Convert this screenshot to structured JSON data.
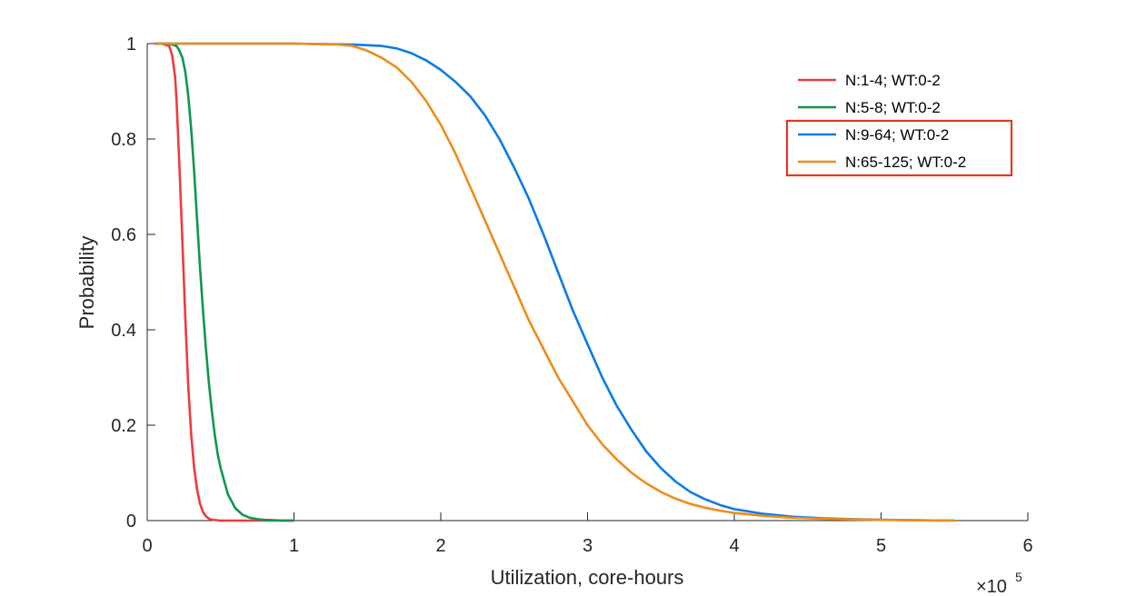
{
  "chart_data": {
    "type": "line",
    "xlabel": "Utilization, core-hours",
    "ylabel": "Probability",
    "x_exponent": "×10",
    "x_exponent_power": "5",
    "xlim": [
      0,
      600000
    ],
    "ylim": [
      0,
      1
    ],
    "xticks": [
      0,
      100000,
      200000,
      300000,
      400000,
      500000,
      600000
    ],
    "xtick_labels": [
      "0",
      "1",
      "2",
      "3",
      "4",
      "5",
      "6"
    ],
    "yticks": [
      0,
      0.2,
      0.4,
      0.6,
      0.8,
      1
    ],
    "ytick_labels": [
      "0",
      "0.2",
      "0.4",
      "0.6",
      "0.8",
      "1"
    ],
    "grid": false,
    "legend_position": "top-right",
    "highlight_box_color": "#E8361F",
    "highlighted_series": [
      2,
      3
    ],
    "series": [
      {
        "name": "N:1-4; WT:0-2",
        "color": "#EF3A3F",
        "x": [
          5000,
          10000,
          15000,
          17000,
          19000,
          20000,
          22000,
          24000,
          26000,
          28000,
          30000,
          32000,
          34000,
          36000,
          38000,
          40000,
          42000,
          44000,
          47000,
          50000,
          55000,
          60000,
          100000
        ],
        "y": [
          1,
          1,
          0.995,
          0.975,
          0.93,
          0.88,
          0.74,
          0.58,
          0.42,
          0.28,
          0.18,
          0.11,
          0.065,
          0.035,
          0.018,
          0.009,
          0.004,
          0.002,
          0.001,
          0,
          0,
          0,
          0
        ]
      },
      {
        "name": "N:5-8; WT:0-2",
        "color": "#0F9650",
        "x": [
          5000,
          15000,
          20000,
          22000,
          24000,
          26000,
          28000,
          30000,
          32000,
          34000,
          36000,
          38000,
          40000,
          42000,
          44000,
          46000,
          48000,
          50000,
          55000,
          60000,
          65000,
          70000,
          75000,
          80000,
          90000,
          100000
        ],
        "y": [
          1,
          1,
          0.995,
          0.985,
          0.97,
          0.94,
          0.89,
          0.82,
          0.73,
          0.63,
          0.53,
          0.44,
          0.36,
          0.29,
          0.23,
          0.18,
          0.14,
          0.11,
          0.055,
          0.026,
          0.012,
          0.006,
          0.003,
          0.0015,
          0.0004,
          0
        ]
      },
      {
        "name": "N:9-64; WT:0-2",
        "color": "#0A7BE8",
        "x": [
          5000,
          50000,
          100000,
          140000,
          160000,
          170000,
          180000,
          190000,
          200000,
          210000,
          220000,
          230000,
          240000,
          250000,
          260000,
          270000,
          280000,
          290000,
          300000,
          310000,
          320000,
          330000,
          340000,
          350000,
          360000,
          370000,
          380000,
          390000,
          400000,
          420000,
          440000,
          460000,
          480000,
          500000,
          520000,
          550000
        ],
        "y": [
          1,
          1,
          1,
          0.998,
          0.995,
          0.99,
          0.98,
          0.965,
          0.945,
          0.92,
          0.89,
          0.85,
          0.8,
          0.74,
          0.675,
          0.6,
          0.52,
          0.44,
          0.37,
          0.3,
          0.24,
          0.19,
          0.145,
          0.11,
          0.082,
          0.06,
          0.045,
          0.033,
          0.024,
          0.014,
          0.008,
          0.005,
          0.003,
          0.002,
          0.001,
          0
        ]
      },
      {
        "name": "N:65-125; WT:0-2",
        "color": "#EF8C1A",
        "x": [
          5000,
          50000,
          100000,
          130000,
          140000,
          150000,
          160000,
          170000,
          180000,
          190000,
          200000,
          210000,
          220000,
          230000,
          240000,
          250000,
          260000,
          270000,
          280000,
          290000,
          300000,
          310000,
          320000,
          330000,
          340000,
          350000,
          360000,
          370000,
          380000,
          390000,
          400000,
          420000,
          440000,
          460000,
          480000,
          500000,
          520000,
          550000
        ],
        "y": [
          1,
          1,
          1,
          0.998,
          0.995,
          0.985,
          0.97,
          0.95,
          0.92,
          0.88,
          0.83,
          0.77,
          0.7,
          0.63,
          0.56,
          0.49,
          0.42,
          0.36,
          0.3,
          0.25,
          0.2,
          0.16,
          0.128,
          0.1,
          0.078,
          0.06,
          0.046,
          0.035,
          0.027,
          0.021,
          0.016,
          0.01,
          0.006,
          0.004,
          0.0025,
          0.0015,
          0.0008,
          0
        ]
      }
    ]
  }
}
